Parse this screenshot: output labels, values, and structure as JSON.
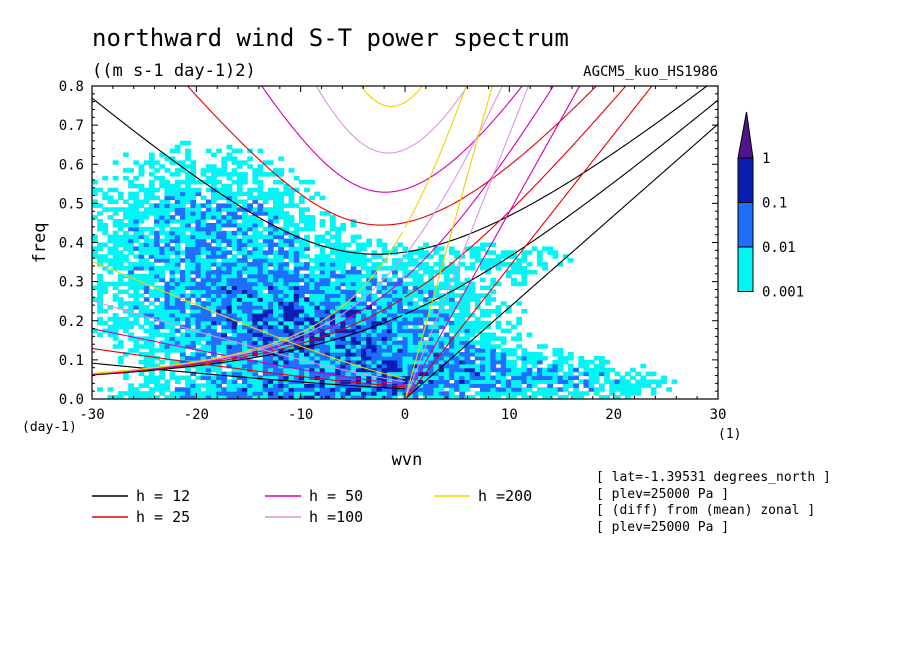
{
  "chart_data": {
    "type": "heatmap",
    "title": "northward wind S-T power spectrum",
    "subtitle": "((m s-1 day-1)2)",
    "model_label": "AGCM5_kuo_HS1986",
    "xlabel": "wvn",
    "ylabel": "freq",
    "x_unit": "(1)",
    "y_unit": "(day-1)",
    "xlim": [
      -30,
      30
    ],
    "ylim": [
      0.0,
      0.8
    ],
    "x_ticks": [
      -30,
      -20,
      -10,
      0,
      10,
      20,
      30
    ],
    "x_tick_labels": [
      "-30",
      "-20",
      "-10",
      "0",
      "10",
      "20",
      "30"
    ],
    "y_ticks": [
      0.0,
      0.1,
      0.2,
      0.3,
      0.4,
      0.5,
      0.6,
      0.7,
      0.8
    ],
    "y_tick_labels": [
      "0.0",
      "0.1",
      "0.2",
      "0.3",
      "0.4",
      "0.5",
      "0.6",
      "0.7",
      "0.8"
    ],
    "color_levels": [
      0.001,
      0.01,
      0.1,
      1
    ],
    "colorbar_labels": [
      "0.001",
      "0.01",
      "0.1",
      "1"
    ],
    "colorbar_colors": [
      "#00f5f5",
      "#1e6eff",
      "#0a1eb4",
      "#50148c"
    ],
    "dispersion_curves": [
      {
        "name": "h = 12",
        "h": 12,
        "color": "#000000"
      },
      {
        "name": "h = 25",
        "h": 25,
        "color": "#e60000"
      },
      {
        "name": "h = 50",
        "h": 50,
        "color": "#d200b4"
      },
      {
        "name": "h =100",
        "h": 100,
        "color": "#dc96e1"
      },
      {
        "name": "h =200",
        "h": 200,
        "color": "#f0d200"
      }
    ],
    "info_lines": [
      "[ lat=-1.39531 degrees_north ]",
      "[ plev=25000 Pa ]",
      "[ (diff) from (mean) zonal ]",
      "[ plev=25000 Pa ]"
    ]
  }
}
